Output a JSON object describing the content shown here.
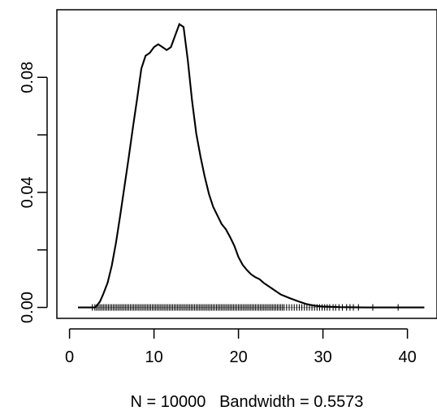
{
  "chart_data": {
    "type": "line",
    "title": "",
    "xlabel": "N = 10000   Bandwidth = 0.5573",
    "ylabel": "",
    "xlim": [
      -1.5,
      43.5
    ],
    "ylim": [
      -0.0038,
      0.1035
    ],
    "x_ticks": [
      0,
      10,
      20,
      30,
      40
    ],
    "x_tick_labels": [
      "0",
      "10",
      "20",
      "30",
      "40"
    ],
    "y_ticks": [
      0.0,
      0.02,
      0.04,
      0.06,
      0.08
    ],
    "y_tick_labels": [
      "0.00",
      "",
      "0.04",
      "",
      "0.08"
    ],
    "grid": false,
    "baseline_y": 0,
    "series": [
      {
        "x": [
          1.0,
          2.0,
          3.0,
          3.2,
          3.6,
          4.0,
          4.5,
          5.0,
          5.5,
          6.0,
          6.5,
          7.0,
          7.5,
          8.0,
          8.5,
          9.0,
          9.5,
          10.0,
          10.5,
          11.0,
          11.5,
          12.0,
          12.5,
          13.0,
          13.5,
          14.0,
          14.5,
          15.0,
          15.5,
          16.0,
          16.5,
          17.0,
          17.5,
          18.0,
          18.5,
          19.0,
          19.5,
          20.0,
          20.5,
          21.0,
          21.5,
          22.0,
          22.5,
          23.0,
          24.0,
          25.0,
          26.0,
          27.0,
          28.0,
          29.0,
          30.0,
          32.0,
          35.0,
          40.0,
          42.0
        ],
        "y": [
          0.0,
          0.0,
          0.0,
          0.0005,
          0.002,
          0.0047,
          0.0085,
          0.0145,
          0.0225,
          0.032,
          0.042,
          0.052,
          0.0625,
          0.0725,
          0.083,
          0.0875,
          0.0885,
          0.0905,
          0.0915,
          0.0905,
          0.0895,
          0.0905,
          0.0945,
          0.0985,
          0.0975,
          0.086,
          0.072,
          0.0605,
          0.0525,
          0.0455,
          0.0395,
          0.035,
          0.032,
          0.029,
          0.0272,
          0.0245,
          0.0215,
          0.0175,
          0.0148,
          0.013,
          0.0115,
          0.0105,
          0.0098,
          0.0085,
          0.0065,
          0.0045,
          0.0033,
          0.0022,
          0.0012,
          0.0006,
          0.0003,
          0.0001,
          0.0,
          0.0,
          0.0
        ]
      }
    ],
    "rug_x": [
      2.7,
      3.0,
      3.2,
      3.4,
      3.6,
      3.8,
      4.0,
      4.2,
      4.4,
      4.6,
      4.8,
      5.0,
      5.2,
      5.4,
      5.6,
      5.8,
      6.0,
      6.2,
      6.4,
      6.6,
      6.8,
      7.0,
      7.2,
      7.4,
      7.6,
      7.8,
      8.0,
      8.2,
      8.4,
      8.6,
      8.8,
      9.0,
      9.2,
      9.4,
      9.6,
      9.8,
      10.0,
      10.2,
      10.4,
      10.6,
      10.8,
      11.0,
      11.2,
      11.4,
      11.6,
      11.8,
      12.0,
      12.2,
      12.4,
      12.6,
      12.8,
      13.0,
      13.2,
      13.4,
      13.6,
      13.8,
      14.0,
      14.2,
      14.4,
      14.6,
      14.8,
      15.0,
      15.2,
      15.4,
      15.6,
      15.8,
      16.0,
      16.2,
      16.4,
      16.6,
      16.8,
      17.0,
      17.2,
      17.4,
      17.6,
      17.8,
      18.0,
      18.2,
      18.4,
      18.6,
      18.8,
      19.0,
      19.2,
      19.4,
      19.6,
      19.8,
      20.0,
      20.2,
      20.4,
      20.6,
      20.8,
      21.0,
      21.2,
      21.4,
      21.6,
      21.8,
      22.0,
      22.2,
      22.4,
      22.6,
      22.8,
      23.0,
      23.2,
      23.4,
      23.6,
      23.8,
      24.0,
      24.2,
      24.4,
      24.6,
      24.8,
      25.0,
      25.2,
      25.4,
      25.7,
      26.0,
      26.3,
      26.6,
      26.9,
      27.2,
      27.5,
      27.8,
      28.1,
      28.4,
      28.7,
      29.0,
      29.3,
      29.6,
      29.9,
      30.2,
      30.5,
      30.8,
      31.2,
      31.5,
      31.9,
      32.3,
      32.8,
      33.2,
      33.6,
      34.2,
      35.9,
      38.9
    ]
  }
}
